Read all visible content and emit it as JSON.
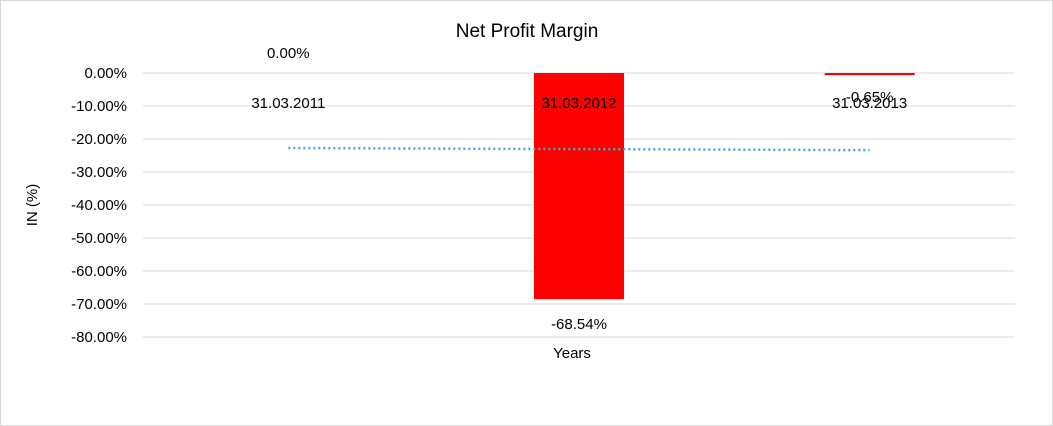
{
  "chart_data": {
    "type": "bar",
    "title": "Net Profit Margin",
    "xlabel": "Years",
    "ylabel": "IN (%)",
    "categories": [
      "31.03.2011",
      "31.03.2012",
      "31.03.2013"
    ],
    "values": [
      0.0,
      -68.54,
      -0.65
    ],
    "data_labels": [
      "0.00%",
      "-68.54%",
      "-0.65%"
    ],
    "bar_color": "#ff0000",
    "ylim": [
      -80,
      0
    ],
    "yticks": [
      0,
      -10,
      -20,
      -30,
      -40,
      -50,
      -60,
      -70,
      -80
    ],
    "ytick_labels": [
      "0.00%",
      "-10.00%",
      "-20.00%",
      "-30.00%",
      "-40.00%",
      "-50.00%",
      "-60.00%",
      "-70.00%",
      "-80.00%"
    ],
    "grid": true,
    "legend": "none",
    "trendline": {
      "type": "linear",
      "style": "dotted",
      "color": "#4ea4cf"
    }
  }
}
